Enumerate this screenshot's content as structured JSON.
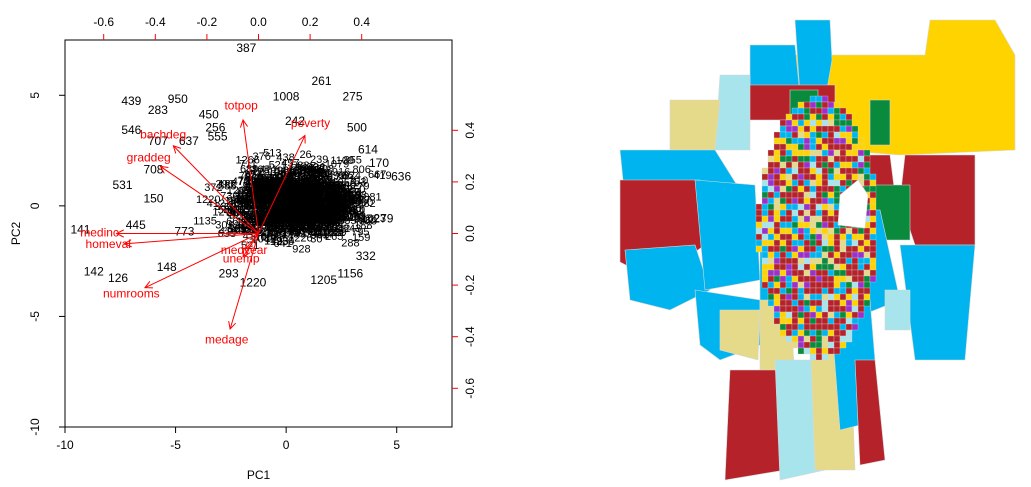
{
  "chart_data": [
    {
      "type": "scatter",
      "subtype": "pca-biplot",
      "title": "",
      "xlabel": "PC1",
      "ylabel": "PC2",
      "xlim": [
        -10,
        7.5
      ],
      "ylim": [
        -10,
        7.5
      ],
      "x_ticks": [
        "-10",
        "-5",
        "0",
        "5"
      ],
      "y_ticks": [
        "-10",
        "-5",
        "0",
        "5"
      ],
      "top_axis": {
        "range": [
          -0.75,
          0.75
        ],
        "ticks": [
          "-0.6",
          "-0.4",
          "-0.2",
          "0.0",
          "0.2",
          "0.4"
        ]
      },
      "right_axis": {
        "range": [
          -0.75,
          0.75
        ],
        "ticks": [
          "-0.6",
          "-0.4",
          "-0.2",
          "0.0",
          "0.2",
          "0.4"
        ]
      },
      "grid": false,
      "loadings_color": "#ff0000",
      "loadings": [
        {
          "name": "totpop",
          "x": -0.06,
          "y": 0.44
        },
        {
          "name": "poverty",
          "x": 0.18,
          "y": 0.38
        },
        {
          "name": "bachdeg",
          "x": -0.33,
          "y": 0.34
        },
        {
          "name": "graddeg",
          "x": -0.38,
          "y": 0.26
        },
        {
          "name": "medyear",
          "x": -0.05,
          "y": -0.06
        },
        {
          "name": "unemp",
          "x": -0.06,
          "y": -0.09
        },
        {
          "name": "medage",
          "x": -0.11,
          "y": -0.37
        },
        {
          "name": "numrooms",
          "x": -0.44,
          "y": -0.21
        },
        {
          "name": "medinc",
          "x": -0.55,
          "y": 0.0
        },
        {
          "name": "homeval",
          "x": -0.52,
          "y": -0.04
        }
      ],
      "points": [
        {
          "label": "439",
          "x": -7.0,
          "y": 4.7
        },
        {
          "label": "283",
          "x": -5.8,
          "y": 4.3
        },
        {
          "label": "950",
          "x": -4.9,
          "y": 4.8
        },
        {
          "label": "450",
          "x": -3.5,
          "y": 4.1
        },
        {
          "label": "546",
          "x": -7.0,
          "y": 3.4
        },
        {
          "label": "707",
          "x": -5.8,
          "y": 2.9
        },
        {
          "label": "256",
          "x": -3.2,
          "y": 3.5
        },
        {
          "label": "708",
          "x": -6.0,
          "y": 1.6
        },
        {
          "label": "531",
          "x": -7.4,
          "y": 0.9
        },
        {
          "label": "150",
          "x": -6.0,
          "y": 0.3
        },
        {
          "label": "445",
          "x": -6.8,
          "y": -0.9
        },
        {
          "label": "141",
          "x": -9.3,
          "y": -1.1
        },
        {
          "label": "142",
          "x": -8.7,
          "y": -3.0
        },
        {
          "label": "126",
          "x": -7.6,
          "y": -3.3
        },
        {
          "label": "148",
          "x": -5.4,
          "y": -2.8
        },
        {
          "label": "387",
          "x": -1.8,
          "y": 7.1
        },
        {
          "label": "261",
          "x": 1.6,
          "y": 5.6
        },
        {
          "label": "1008",
          "x": 0.0,
          "y": 4.9
        },
        {
          "label": "275",
          "x": 3.0,
          "y": 4.9
        },
        {
          "label": "242",
          "x": 0.4,
          "y": 3.8
        },
        {
          "label": "500",
          "x": 3.2,
          "y": 3.5
        },
        {
          "label": "614",
          "x": 3.7,
          "y": 2.5
        },
        {
          "label": "170",
          "x": 4.2,
          "y": 1.9
        },
        {
          "label": "636",
          "x": 5.2,
          "y": 1.3
        },
        {
          "label": "279",
          "x": 4.4,
          "y": -0.6
        },
        {
          "label": "293",
          "x": -2.6,
          "y": -3.1
        },
        {
          "label": "1220",
          "x": -1.5,
          "y": -3.5
        },
        {
          "label": "1205",
          "x": 1.7,
          "y": -3.4
        },
        {
          "label": "1156",
          "x": 2.9,
          "y": -3.1
        },
        {
          "label": "332",
          "x": 3.6,
          "y": -2.3
        },
        {
          "label": "773",
          "x": -4.6,
          "y": -1.2
        },
        {
          "label": "637",
          "x": -4.4,
          "y": 2.9
        },
        {
          "label": "555",
          "x": -3.1,
          "y": 3.1
        }
      ]
    },
    {
      "type": "choropleth",
      "title": "",
      "legend": false,
      "palette": [
        "#00b5ef",
        "#a8e4ec",
        "#e5d98a",
        "#b5222a",
        "#0a8a3c",
        "#ffd300",
        "#9b31c9",
        "#ffff33"
      ]
    }
  ]
}
